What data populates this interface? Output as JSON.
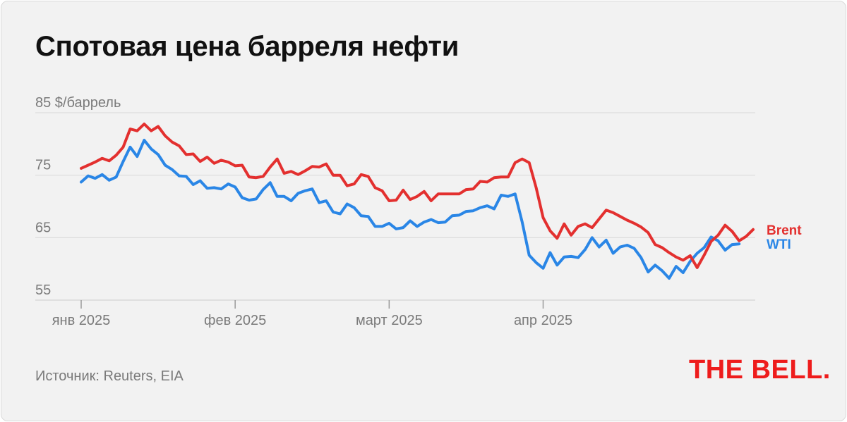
{
  "title": "Спотовая цена барреля нефти",
  "source": "Источник: Reuters, EIA",
  "logo_text": "THE BELL.",
  "chart_data": {
    "type": "line",
    "ylabel": "$/баррель",
    "ylim": [
      55,
      85
    ],
    "yticks": [
      85,
      75,
      65,
      55
    ],
    "ytick_labels": [
      "85 $/баррель",
      "75",
      "65",
      "55"
    ],
    "xticks": [
      {
        "index": 0,
        "label": "янв 2025"
      },
      {
        "index": 22,
        "label": "фев 2025"
      },
      {
        "index": 44,
        "label": "март 2025"
      },
      {
        "index": 66,
        "label": "апр 2025"
      }
    ],
    "grid": true,
    "series": [
      {
        "name": "Brent",
        "color": "#e3302f",
        "values": [
          76.1,
          76.6,
          77.1,
          77.7,
          77.3,
          78.2,
          79.5,
          82.4,
          82.1,
          83.2,
          82.1,
          82.8,
          81.3,
          80.3,
          79.7,
          78.3,
          78.4,
          77.2,
          77.9,
          76.9,
          77.4,
          77.1,
          76.5,
          76.6,
          74.7,
          74.6,
          74.8,
          76.3,
          77.6,
          75.3,
          75.6,
          75.1,
          75.7,
          76.4,
          76.3,
          76.8,
          75.0,
          75.0,
          73.3,
          73.6,
          75.1,
          74.8,
          73.0,
          72.5,
          70.9,
          71.0,
          72.6,
          71.1,
          71.6,
          72.4,
          70.9,
          72.0,
          72.0,
          72.0,
          72.0,
          72.7,
          72.8,
          74.0,
          73.9,
          74.6,
          74.7,
          74.7,
          77.0,
          77.6,
          77.0,
          73.0,
          68.2,
          66.1,
          64.9,
          67.2,
          65.4,
          66.8,
          67.2,
          66.6,
          68.0,
          69.4,
          69.0,
          68.4,
          67.8,
          67.3,
          66.7,
          65.8,
          63.9,
          63.4,
          62.6,
          61.9,
          61.4,
          62.1,
          60.2,
          62.2,
          64.4,
          65.4,
          67.0,
          66.0,
          64.5,
          65.2,
          66.3
        ]
      },
      {
        "name": "WTI",
        "color": "#2a86e6",
        "values": [
          73.9,
          74.9,
          74.5,
          75.1,
          74.2,
          74.7,
          77.2,
          79.5,
          78.0,
          80.6,
          79.2,
          78.3,
          76.6,
          75.9,
          74.9,
          74.8,
          73.5,
          74.1,
          72.9,
          73.0,
          72.8,
          73.6,
          73.1,
          71.4,
          71.0,
          71.2,
          72.7,
          73.8,
          71.6,
          71.6,
          70.9,
          72.1,
          72.5,
          72.8,
          70.6,
          70.9,
          69.1,
          68.8,
          70.4,
          69.8,
          68.5,
          68.4,
          66.8,
          66.8,
          67.3,
          66.4,
          66.6,
          67.7,
          66.8,
          67.5,
          67.9,
          67.4,
          67.5,
          68.5,
          68.6,
          69.2,
          69.3,
          69.8,
          70.1,
          69.6,
          71.8,
          71.6,
          72.0,
          67.5,
          62.2,
          61.0,
          60.1,
          62.6,
          60.6,
          61.9,
          62.0,
          61.8,
          63.1,
          65.0,
          63.5,
          64.6,
          62.5,
          63.5,
          63.8,
          63.3,
          61.8,
          59.5,
          60.6,
          59.7,
          58.5,
          60.4,
          59.4,
          61.2,
          62.5,
          63.4,
          65.1,
          64.5,
          63.0,
          63.9,
          64.0
        ]
      }
    ]
  }
}
